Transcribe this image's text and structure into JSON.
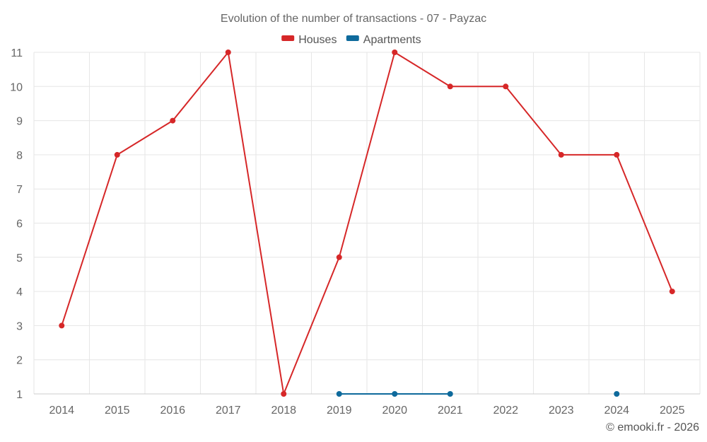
{
  "chart_data": {
    "type": "line",
    "title": "Evolution of the number of transactions - 07 - Payzac",
    "categories": [
      "2014",
      "2015",
      "2016",
      "2017",
      "2018",
      "2019",
      "2020",
      "2021",
      "2022",
      "2023",
      "2024",
      "2025"
    ],
    "yticks": [
      "1",
      "2",
      "3",
      "4",
      "5",
      "6",
      "7",
      "8",
      "9",
      "10",
      "11"
    ],
    "ylim": [
      1,
      11
    ],
    "grid": true,
    "legend_position": "top-center",
    "series": [
      {
        "name": "Houses",
        "color": "#d62728",
        "values": [
          3,
          8,
          9,
          11,
          1,
          5,
          11,
          10,
          10,
          8,
          8,
          4
        ]
      },
      {
        "name": "Apartments",
        "color": "#0e6a9c",
        "values": [
          null,
          null,
          null,
          null,
          null,
          1,
          1,
          1,
          null,
          null,
          1,
          null
        ]
      }
    ]
  },
  "credit": "© emooki.fr - 2026"
}
